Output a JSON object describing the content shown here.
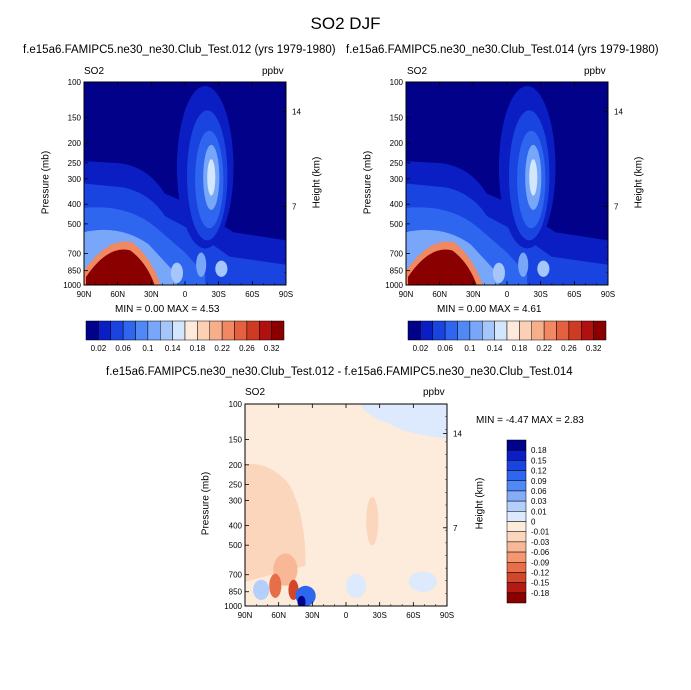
{
  "title": "SO2 DJF",
  "panels": {
    "left": {
      "subtitle": "f.e15a6.FAMIPC5.ne30_ne30.Club_Test.012 (yrs 1979-1980)",
      "var_label": "SO2",
      "units": "ppbv",
      "min_max": "MIN =  0.00  MAX =   4.53"
    },
    "right": {
      "subtitle": "f.e15a6.FAMIPC5.ne30_ne30.Club_Test.014 (yrs 1979-1980)",
      "var_label": "SO2",
      "units": "ppbv",
      "min_max": "MIN =  0.00  MAX =   4.61"
    },
    "diff": {
      "subtitle": "f.e15a6.FAMIPC5.ne30_ne30.Club_Test.012 - f.e15a6.FAMIPC5.ne30_ne30.Club_Test.014",
      "var_label": "SO2",
      "units": "ppbv",
      "min_max": "MIN =  -4.47  MAX =   2.83"
    }
  },
  "axes": {
    "ylabel": "Pressure (mb)",
    "ylabel_right": "Height (km)"
  },
  "colors": {
    "seq": [
      "#01018a",
      "#0a1ec4",
      "#1a44e0",
      "#2e66f0",
      "#5088f5",
      "#78a6f8",
      "#a4c6fb",
      "#d2e6fd",
      "#fdeadc",
      "#fbd0b4",
      "#f7ae8a",
      "#f08862",
      "#e4603e",
      "#cf3a22",
      "#b01010",
      "#8a0000"
    ],
    "div": [
      "#01018a",
      "#0a1ec4",
      "#1a44e0",
      "#2e66f0",
      "#5088f5",
      "#84acf8",
      "#b4cffb",
      "#dde9fc",
      "#fdebdc",
      "#fbd5bc",
      "#f8b898",
      "#f29770",
      "#e66e48",
      "#d2462a",
      "#b41a12",
      "#8a0000"
    ]
  },
  "chart_data": [
    {
      "type": "heatmap",
      "name": "SO2 Test.012",
      "xticks": [
        "90N",
        "60N",
        "30N",
        "0",
        "30S",
        "60S",
        "90S"
      ],
      "yticks": [
        100,
        150,
        200,
        250,
        300,
        400,
        500,
        700,
        850,
        1000
      ],
      "yticks_right": [
        14,
        7
      ],
      "ylim": [
        1000,
        100
      ],
      "xlim": [
        90,
        -90
      ],
      "colorbar": {
        "labels": [
          "0.02",
          "0.06",
          "0.1",
          "0.14",
          "0.18",
          "0.22",
          "0.26",
          "0.32"
        ]
      },
      "min": 0.0,
      "max": 4.53
    },
    {
      "type": "heatmap",
      "name": "SO2 Test.014",
      "xticks": [
        "90N",
        "60N",
        "30N",
        "0",
        "30S",
        "60S",
        "90S"
      ],
      "yticks": [
        100,
        150,
        200,
        250,
        300,
        400,
        500,
        700,
        850,
        1000
      ],
      "yticks_right": [
        14,
        7
      ],
      "ylim": [
        1000,
        100
      ],
      "xlim": [
        90,
        -90
      ],
      "colorbar": {
        "labels": [
          "0.02",
          "0.06",
          "0.1",
          "0.14",
          "0.18",
          "0.22",
          "0.26",
          "0.32"
        ]
      },
      "min": 0.0,
      "max": 4.61
    },
    {
      "type": "heatmap",
      "name": "SO2 difference",
      "xticks": [
        "90N",
        "60N",
        "30N",
        "0",
        "30S",
        "60S",
        "90S"
      ],
      "yticks": [
        100,
        150,
        200,
        250,
        300,
        400,
        500,
        700,
        850,
        1000
      ],
      "yticks_right": [
        14,
        7
      ],
      "ylim": [
        1000,
        100
      ],
      "xlim": [
        90,
        -90
      ],
      "colorbar": {
        "labels": [
          "0.18",
          "0.15",
          "0.12",
          "0.09",
          "0.06",
          "0.03",
          "0.01",
          "0",
          "-0.01",
          "-0.03",
          "-0.06",
          "-0.09",
          "-0.12",
          "-0.15",
          "-0.18"
        ]
      },
      "min": -4.47,
      "max": 2.83
    }
  ]
}
